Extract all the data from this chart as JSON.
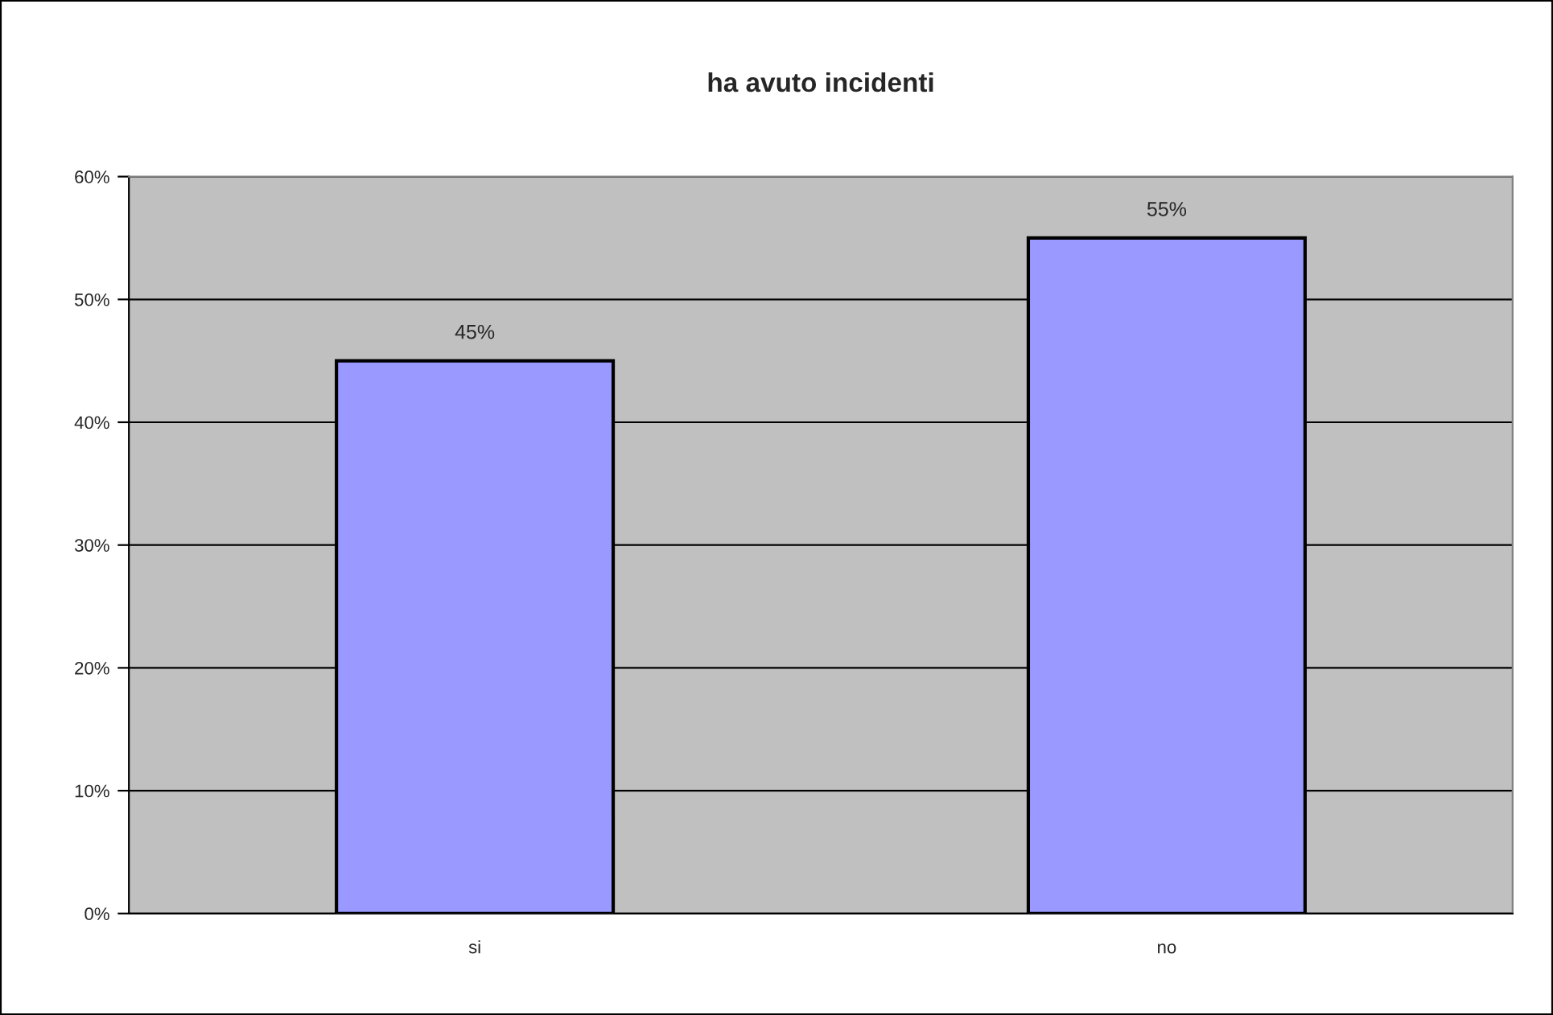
{
  "chart_data": {
    "type": "bar",
    "title": "ha avuto incidenti",
    "categories": [
      "si",
      "no"
    ],
    "values": [
      45,
      55
    ],
    "color": "#9999ff",
    "value_labels": [
      "45%",
      "55%"
    ],
    "ylim": [
      0,
      60
    ],
    "yticks": [
      {
        "value": 0,
        "label": "0%"
      },
      {
        "value": 10,
        "label": "10%"
      },
      {
        "value": 20,
        "label": "20%"
      },
      {
        "value": 30,
        "label": "30%"
      },
      {
        "value": 40,
        "label": "40%"
      },
      {
        "value": 50,
        "label": "50%"
      },
      {
        "value": 60,
        "label": "60%"
      }
    ],
    "grid": "y"
  }
}
